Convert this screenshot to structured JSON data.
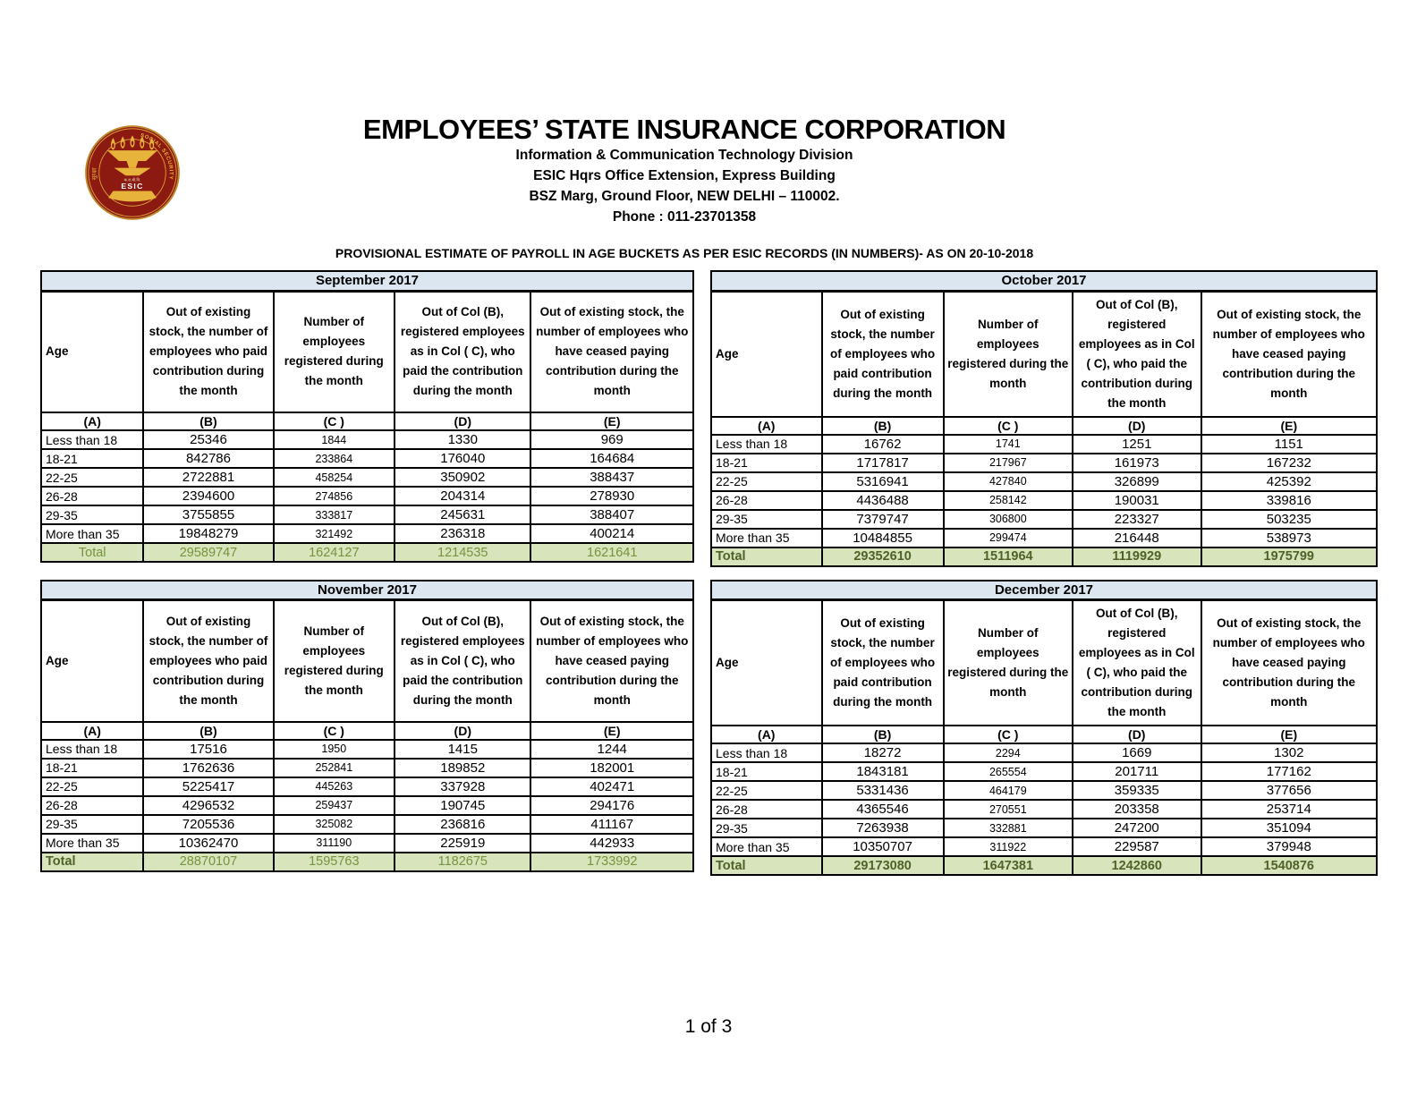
{
  "logo": {
    "name": "esic-seal",
    "center_text": "ESIC",
    "small_text": "क.रा.बी.नि.",
    "arc_text_left": "सुरक्षा",
    "arc_text_right": "SOCIAL SECURITY"
  },
  "header": {
    "title": "EMPLOYEES’ STATE INSURANCE CORPORATION",
    "division": "Information & Communication Technology Division",
    "address1": "ESIC Hqrs Office Extension, Express Building",
    "address2": "BSZ Marg, Ground Floor, NEW DELHI – 110002.",
    "phone": "Phone : 011-23701358"
  },
  "report_title": "PROVISIONAL ESTIMATE OF PAYROLL IN AGE BUCKETS AS PER ESIC RECORDS (IN NUMBERS)- AS ON 20-10-2018",
  "columns": {
    "a": "Age",
    "b": "Out of existing stock, the number of employees who paid contribution during the month",
    "c": "Number of employees registered during the month",
    "d": "Out of Col (B), registered employees as in Col ( C), who paid the contribution during the month",
    "e": "Out of existing stock, the number of  employees  who have ceased paying contribution during the month",
    "letters": [
      "(A)",
      "(B)",
      "(C )",
      "(D)",
      "(E)"
    ]
  },
  "colors": {
    "month_bar_bg": "#DCE6F1",
    "total_row_bg": "#D7E4BC",
    "total_dark_green": "#4F6228",
    "total_light_green": "#77933C",
    "logo_maroon": "#8C1A11",
    "logo_gold": "#DFA93C"
  },
  "tables": [
    {
      "month": "September 2017",
      "rows": [
        [
          "Less than 18",
          "25346",
          "1844",
          "1330",
          "969"
        ],
        [
          "18-21",
          "842786",
          "233864",
          "176040",
          "164684"
        ],
        [
          "22-25",
          "2722881",
          "458254",
          "350902",
          "388437"
        ],
        [
          "26-28",
          "2394600",
          "274856",
          "204314",
          "278930"
        ],
        [
          "29-35",
          "3755855",
          "333817",
          "245631",
          "388407"
        ],
        [
          "More than 35",
          "19848279",
          "321492",
          "236318",
          "400214"
        ]
      ],
      "total": {
        "label": "Total",
        "values": [
          "29589747",
          "1624127",
          "1214535",
          "1621641"
        ]
      }
    },
    {
      "month": "October 2017",
      "rows": [
        [
          "Less than 18",
          "16762",
          "1741",
          "1251",
          "1151"
        ],
        [
          "18-21",
          "1717817",
          "217967",
          "161973",
          "167232"
        ],
        [
          "22-25",
          "5316941",
          "427840",
          "326899",
          "425392"
        ],
        [
          "26-28",
          "4436488",
          "258142",
          "190031",
          "339816"
        ],
        [
          "29-35",
          "7379747",
          "306800",
          "223327",
          "503235"
        ],
        [
          "More than 35",
          "10484855",
          "299474",
          "216448",
          "538973"
        ]
      ],
      "total": {
        "label": "Total",
        "values": [
          "29352610",
          "1511964",
          "1119929",
          "1975799"
        ]
      }
    },
    {
      "month": "November 2017",
      "rows": [
        [
          "Less than 18",
          "17516",
          "1950",
          "1415",
          "1244"
        ],
        [
          "18-21",
          "1762636",
          "252841",
          "189852",
          "182001"
        ],
        [
          "22-25",
          "5225417",
          "445263",
          "337928",
          "402471"
        ],
        [
          "26-28",
          "4296532",
          "259437",
          "190745",
          "294176"
        ],
        [
          "29-35",
          "7205536",
          "325082",
          "236816",
          "411167"
        ],
        [
          "More than 35",
          "10362470",
          "311190",
          "225919",
          "442933"
        ]
      ],
      "total": {
        "label": "Total",
        "values": [
          "28870107",
          "1595763",
          "1182675",
          "1733992"
        ]
      }
    },
    {
      "month": "December 2017",
      "rows": [
        [
          "Less than 18",
          "18272",
          "2294",
          "1669",
          "1302"
        ],
        [
          "18-21",
          "1843181",
          "265554",
          "201711",
          "177162"
        ],
        [
          "22-25",
          "5331436",
          "464179",
          "359335",
          "377656"
        ],
        [
          "26-28",
          "4365546",
          "270551",
          "203358",
          "253714"
        ],
        [
          "29-35",
          "7263938",
          "332881",
          "247200",
          "351094"
        ],
        [
          "More than 35",
          "10350707",
          "311922",
          "229587",
          "379948"
        ]
      ],
      "total": {
        "label": "Total",
        "values": [
          "29173080",
          "1647381",
          "1242860",
          "1540876"
        ]
      }
    }
  ],
  "footer": {
    "page_indicator": "1 of 3"
  }
}
